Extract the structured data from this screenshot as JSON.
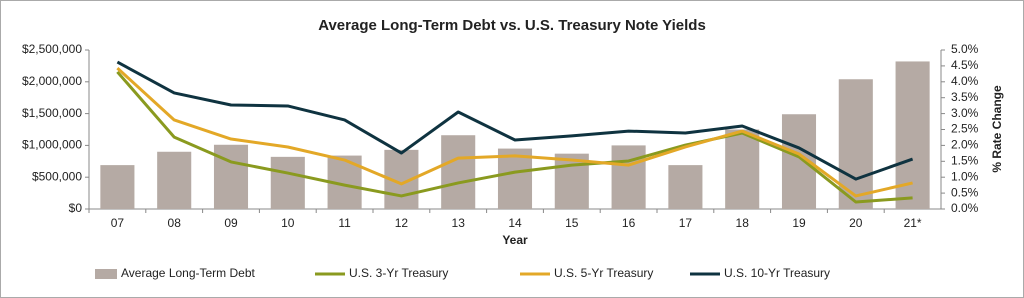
{
  "chart_data": {
    "type": "combo",
    "title": "Average Long-Term Debt vs. U.S. Treasury Note Yields",
    "x_label": "Year",
    "y2_label": "% Rate Change",
    "categories": [
      "07",
      "08",
      "09",
      "10",
      "11",
      "12",
      "13",
      "14",
      "15",
      "16",
      "17",
      "18",
      "19",
      "20",
      "21*"
    ],
    "series": [
      {
        "name": "Average Long-Term Debt",
        "type": "bar",
        "axis": "y",
        "color": "#b5aaa4",
        "values": [
          690000,
          900000,
          1010000,
          820000,
          840000,
          930000,
          1160000,
          950000,
          870000,
          1000000,
          690000,
          1250000,
          1490000,
          2040000,
          2320000
        ]
      },
      {
        "name": "U.S. 3-Yr Treasury",
        "type": "line",
        "axis": "y2",
        "color": "#8a9a1f",
        "values": [
          4.31,
          2.26,
          1.48,
          1.13,
          0.75,
          0.41,
          0.82,
          1.16,
          1.38,
          1.51,
          2.01,
          2.39,
          1.64,
          0.22,
          0.35
        ]
      },
      {
        "name": "U.S. 5-Yr Treasury",
        "type": "line",
        "axis": "y2",
        "color": "#e3a827",
        "values": [
          4.43,
          2.8,
          2.2,
          1.95,
          1.54,
          0.79,
          1.6,
          1.67,
          1.54,
          1.38,
          1.95,
          2.45,
          1.73,
          0.41,
          0.82
        ]
      },
      {
        "name": "U.S. 10-Yr Treasury",
        "type": "line",
        "axis": "y2",
        "color": "#0f3340",
        "values": [
          4.62,
          3.65,
          3.27,
          3.24,
          2.8,
          1.76,
          3.05,
          2.17,
          2.3,
          2.45,
          2.39,
          2.61,
          1.92,
          0.94,
          1.57
        ]
      }
    ],
    "ylim": [
      0,
      2500000
    ],
    "yticks": [
      {
        "value": 0,
        "label": "$0"
      },
      {
        "value": 500000,
        "label": "$500,000"
      },
      {
        "value": 1000000,
        "label": "$1,000,000"
      },
      {
        "value": 1500000,
        "label": "$1,500,000"
      },
      {
        "value": 2000000,
        "label": "$2,000,000"
      },
      {
        "value": 2500000,
        "label": "$2,500,000"
      }
    ],
    "y2lim": [
      0,
      5
    ],
    "y2ticks": [
      {
        "value": 0,
        "label": "0.0%"
      },
      {
        "value": 0.5,
        "label": "0.5%"
      },
      {
        "value": 1,
        "label": "1.0%"
      },
      {
        "value": 1.5,
        "label": "1.5%"
      },
      {
        "value": 2,
        "label": "2.0%"
      },
      {
        "value": 2.5,
        "label": "2.5%"
      },
      {
        "value": 3,
        "label": "3.0%"
      },
      {
        "value": 3.5,
        "label": "3.5%"
      },
      {
        "value": 4,
        "label": "4.0%"
      },
      {
        "value": 4.5,
        "label": "4.5%"
      },
      {
        "value": 5,
        "label": "5.0%"
      }
    ],
    "grid": false,
    "legend": "bottom"
  }
}
